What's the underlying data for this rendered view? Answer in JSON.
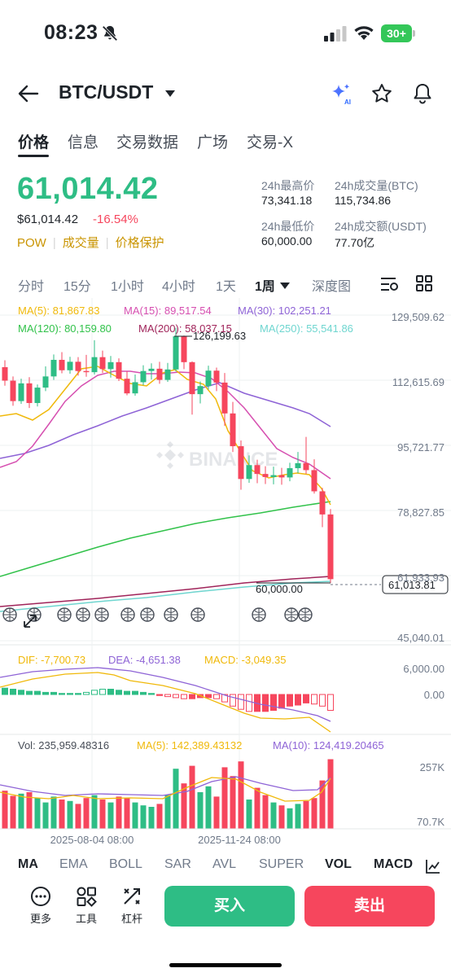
{
  "status": {
    "time": "08:23",
    "battery": "30+"
  },
  "header": {
    "pair": "BTC/USDT"
  },
  "tabs": [
    "价格",
    "信息",
    "交易数据",
    "广场",
    "交易-X"
  ],
  "price": {
    "last": "61,014.42",
    "usd": "$61,014.42",
    "change": "-16.54%",
    "tags": [
      "POW",
      "成交量",
      "价格保护"
    ],
    "high_label": "24h最高价",
    "high": "73,341.18",
    "vol_btc_label": "24h成交量(BTC)",
    "vol_btc": "115,734.86",
    "low_label": "24h最低价",
    "low": "60,000.00",
    "vol_usdt_label": "24h成交额(USDT)",
    "vol_usdt": "77.70亿"
  },
  "timeframes": [
    "分时",
    "15分",
    "1小时",
    "4小时",
    "1天",
    "1周",
    "深度图"
  ],
  "ma_legend": [
    {
      "text": "MA(5): 81,867.83",
      "color": "#f0b90b"
    },
    {
      "text": "MA(15): 89,517.54",
      "color": "#d64fb0"
    },
    {
      "text": "MA(30): 102,251.21",
      "color": "#8e63d6"
    },
    {
      "text": "MA(120): 80,159.80",
      "color": "#31c24a"
    },
    {
      "text": "MA(200): 58,037.15",
      "color": "#a0245a"
    },
    {
      "text": "MA(250): 55,541.86",
      "color": "#6fd6d0"
    }
  ],
  "chart": {
    "y_ticks": [
      "129,509.62",
      "112,615.69",
      "95,721.77",
      "78,827.85",
      "61,933.93",
      "45,040.01"
    ],
    "high_marker": "126,199.63",
    "low_marker": "60,000.00",
    "current_price": "61,013.81",
    "watermark": "BINANCE",
    "x_ticks": [
      "2025-08-04 08:00",
      "2025-11-24 08:00"
    ]
  },
  "macd": {
    "dif": "DIF: -7,700.73",
    "dea": "DEA: -4,651.38",
    "macd": "MACD: -3,049.35",
    "y_ticks": [
      "6,000.00",
      "0.00"
    ]
  },
  "vol": {
    "vol": "Vol: 235,959.48316",
    "ma5": "MA(5): 142,389.43132",
    "ma10": "MA(10): 124,419.20465",
    "y_ticks": [
      "257K",
      "70.7K"
    ]
  },
  "indicators": [
    "MA",
    "EMA",
    "BOLL",
    "SAR",
    "AVL",
    "SUPER",
    "VOL",
    "MACD"
  ],
  "bottom": {
    "more": "更多",
    "tools": "工具",
    "leverage": "杠杆",
    "buy": "买入",
    "sell": "卖出"
  },
  "chart_data": {
    "type": "candlestick",
    "y_range": [
      45040.01,
      129509.62
    ],
    "candles": [
      [
        116000,
        112500,
        117800,
        111200
      ],
      [
        112500,
        107200,
        113600,
        106000
      ],
      [
        107200,
        111800,
        113000,
        106500
      ],
      [
        111800,
        106700,
        113400,
        105400
      ],
      [
        106700,
        110700,
        111500,
        105800
      ],
      [
        110700,
        113600,
        116200,
        109800
      ],
      [
        113600,
        117900,
        119300,
        112700
      ],
      [
        117900,
        115200,
        119900,
        114400
      ],
      [
        115200,
        117400,
        118700,
        114300
      ],
      [
        117400,
        115000,
        118600,
        113800
      ],
      [
        115000,
        114700,
        119200,
        113500
      ],
      [
        114700,
        118600,
        123000,
        114100
      ],
      [
        118600,
        115500,
        120300,
        114500
      ],
      [
        115500,
        117300,
        118900,
        113300
      ],
      [
        117300,
        113000,
        118300,
        112400
      ],
      [
        113000,
        109200,
        114900,
        108700
      ],
      [
        109200,
        112100,
        114100,
        108600
      ],
      [
        112100,
        115000,
        116500,
        111300
      ],
      [
        115000,
        115600,
        117000,
        112800
      ],
      [
        115600,
        112700,
        117400,
        111700
      ],
      [
        112700,
        115400,
        117100,
        112200
      ],
      [
        115400,
        124000,
        126199.63,
        114900
      ],
      [
        124000,
        117300,
        124200,
        115500
      ],
      [
        117300,
        109000,
        117500,
        103700
      ],
      [
        109000,
        111100,
        112300,
        106600
      ],
      [
        111100,
        115100,
        116400,
        110200
      ],
      [
        115100,
        112000,
        115900,
        109800
      ],
      [
        112000,
        104000,
        114500,
        100800
      ],
      [
        104000,
        95500,
        107000,
        94000
      ],
      [
        95500,
        87000,
        97000,
        84200
      ],
      [
        87000,
        90600,
        93100,
        86000
      ],
      [
        90600,
        88300,
        92000,
        85900
      ],
      [
        88300,
        87500,
        90300,
        85700
      ],
      [
        87500,
        88000,
        90200,
        85600
      ],
      [
        88000,
        87400,
        89900,
        85500
      ],
      [
        87400,
        89800,
        91200,
        86400
      ],
      [
        89800,
        91100,
        94000,
        88500
      ],
      [
        91100,
        89300,
        97900,
        88300
      ],
      [
        89300,
        83800,
        92100,
        83200
      ],
      [
        83800,
        77800,
        84700,
        74500
      ],
      [
        77800,
        61013.81,
        79200,
        60000
      ]
    ]
  }
}
